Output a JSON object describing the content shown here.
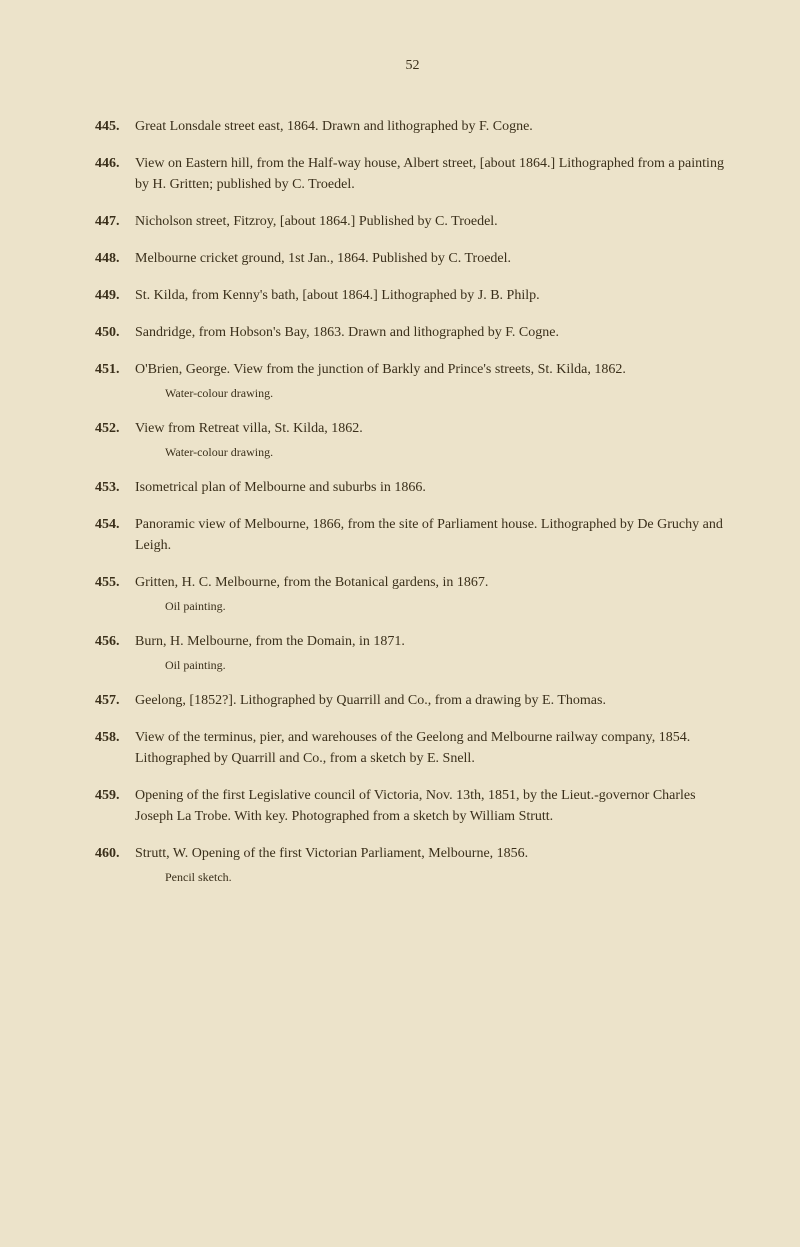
{
  "page_number": "52",
  "typography": {
    "body_font_family": "Times New Roman",
    "body_font_size_pt": 10.5,
    "note_font_size_pt": 9,
    "page_number_font_size_pt": 10.5,
    "line_height": 1.5,
    "text_color": "#3a2f1a",
    "background_color": "#ece3ca",
    "entry_number_font_weight": "bold"
  },
  "entries": [
    {
      "num": "445.",
      "text": "Great Lonsdale street east, 1864. Drawn and lithographed by F. Cogne."
    },
    {
      "num": "446.",
      "text": "View on Eastern hill, from the Half-way house, Albert street, [about 1864.] Lithographed from a painting by H. Gritten; published by C. Troedel."
    },
    {
      "num": "447.",
      "text": "Nicholson street, Fitzroy, [about 1864.] Published by C. Troedel."
    },
    {
      "num": "448.",
      "text": "Melbourne cricket ground, 1st Jan., 1864. Published by C. Troedel."
    },
    {
      "num": "449.",
      "text": "St. Kilda, from Kenny's bath, [about 1864.] Lithographed by J. B. Philp."
    },
    {
      "num": "450.",
      "text": "Sandridge, from Hobson's Bay, 1863. Drawn and lithographed by F. Cogne."
    },
    {
      "num": "451.",
      "text": "O'Brien, George. View from the junction of Barkly and Prince's streets, St. Kilda, 1862.",
      "note": "Water-colour drawing."
    },
    {
      "num": "452.",
      "text": "View from Retreat villa, St. Kilda, 1862.",
      "note": "Water-colour drawing."
    },
    {
      "num": "453.",
      "text": "Isometrical plan of Melbourne and suburbs in 1866."
    },
    {
      "num": "454.",
      "text": "Panoramic view of Melbourne, 1866, from the site of Parliament house. Lithographed by De Gruchy and Leigh."
    },
    {
      "num": "455.",
      "text": "Gritten, H. C. Melbourne, from the Botanical gardens, in 1867.",
      "note": "Oil painting."
    },
    {
      "num": "456.",
      "text": "Burn, H. Melbourne, from the Domain, in 1871.",
      "note": "Oil painting."
    },
    {
      "num": "457.",
      "text": "Geelong, [1852?]. Lithographed by Quarrill and Co., from a drawing by E. Thomas."
    },
    {
      "num": "458.",
      "text": "View of the terminus, pier, and warehouses of the Geelong and Melbourne railway company, 1854. Lithographed by Quarrill and Co., from a sketch by E. Snell."
    },
    {
      "num": "459.",
      "text": "Opening of the first Legislative council of Victoria, Nov. 13th, 1851, by the Lieut.-governor Charles Joseph La Trobe. With key. Photographed from a sketch by William Strutt."
    },
    {
      "num": "460.",
      "text": "Strutt, W. Opening of the first Victorian Parliament, Melbourne, 1856.",
      "note": "Pencil sketch."
    }
  ]
}
